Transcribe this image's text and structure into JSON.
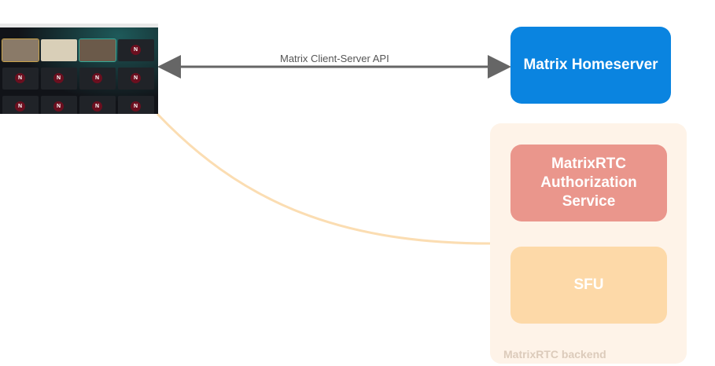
{
  "client_screenshot": {
    "tile_initial": "N"
  },
  "connections": [
    {
      "label": "Matrix Client-Server API",
      "color": "#666666"
    }
  ],
  "homeserver": {
    "label": "Matrix Homeserver",
    "color": "#0A84E0"
  },
  "backend": {
    "label": "MatrixRTC backend",
    "color": "#FEF3E8",
    "services": [
      {
        "label": "MatrixRTC Authorization Service",
        "color": "#EA968C"
      },
      {
        "label": "SFU",
        "color": "#FDD9A8"
      }
    ]
  },
  "link_color": "#FBDDB2"
}
